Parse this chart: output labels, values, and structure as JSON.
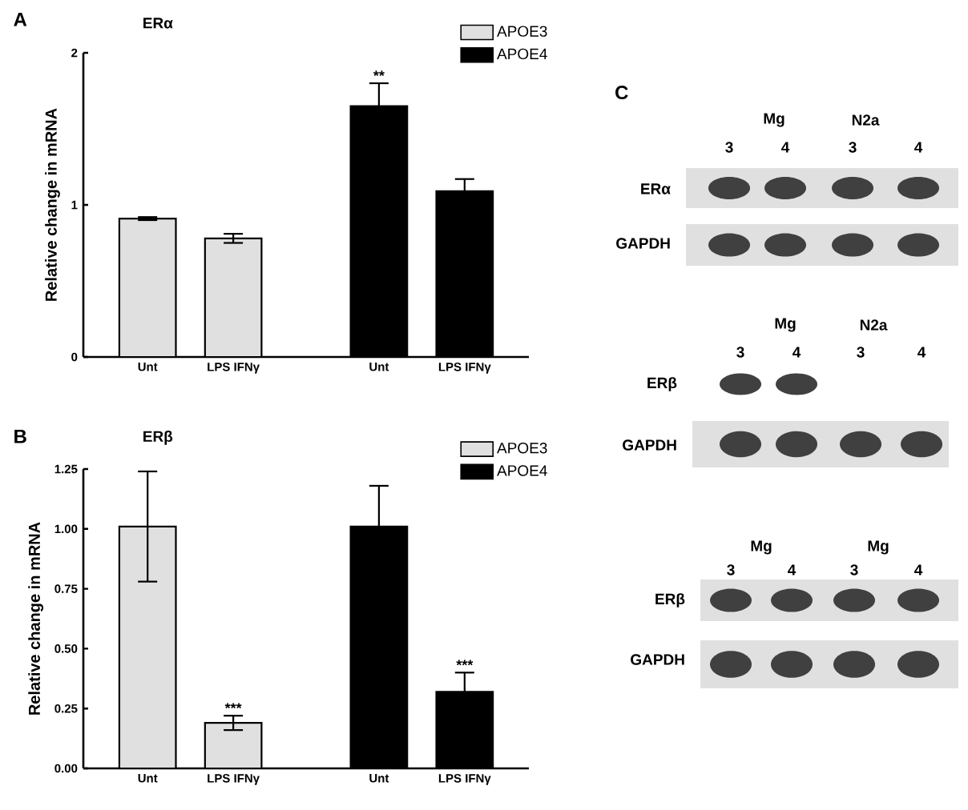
{
  "chart_data": [
    {
      "type": "bar",
      "title": "ERα",
      "ylabel": "Relative change in mRNA",
      "categories": [
        "Unt",
        "LPS IFNγ",
        "Unt",
        "LPS IFNγ"
      ],
      "series": [
        {
          "name": "APOE3",
          "color": "#e0e0e0",
          "values": [
            0.91,
            0.78,
            null,
            null
          ],
          "errors": [
            0.01,
            0.03,
            null,
            null
          ]
        },
        {
          "name": "APOE4",
          "color": "#000000",
          "values": [
            null,
            null,
            1.65,
            1.09
          ],
          "errors": [
            null,
            null,
            0.15,
            0.08
          ],
          "value_labels": [
            null,
            null,
            "**",
            null
          ]
        }
      ],
      "ylim": [
        0,
        2
      ],
      "yticks": [
        0,
        1,
        2
      ],
      "legend": "top right",
      "annotations": [
        "A"
      ]
    },
    {
      "type": "bar",
      "title": "ERβ",
      "ylabel": "Relative change in mRNA",
      "categories": [
        "Unt",
        "LPS IFNγ",
        "Unt",
        "LPS IFNγ"
      ],
      "series": [
        {
          "name": "APOE3",
          "color": "#e0e0e0",
          "values": [
            1.01,
            0.19,
            null,
            null
          ],
          "errors": [
            0.23,
            0.03,
            null,
            null
          ],
          "value_labels": [
            null,
            "***",
            null,
            null
          ]
        },
        {
          "name": "APOE4",
          "color": "#000000",
          "values": [
            null,
            null,
            1.01,
            0.32
          ],
          "errors": [
            null,
            null,
            0.17,
            0.08
          ],
          "value_labels": [
            null,
            null,
            null,
            "***"
          ]
        }
      ],
      "ylim": [
        0,
        1.25
      ],
      "yticks": [
        {
          "value": 0,
          "label": "0.00"
        },
        {
          "value": 0.25,
          "label": "0.25"
        },
        {
          "value": 0.5,
          "label": "0.50"
        },
        {
          "value": 0.75,
          "label": "0.75"
        },
        {
          "value": 1,
          "label": "1.00"
        },
        {
          "value": 1.25,
          "label": "1.25"
        }
      ],
      "legend": "top right",
      "annotations": [
        "B"
      ]
    },
    {
      "type": "other",
      "title": "C",
      "annotations": [
        "Mg",
        "N2a",
        "3",
        "4",
        "3",
        "4",
        "ERα",
        "GAPDH",
        "Mg",
        "N2a",
        "3",
        "4",
        "3",
        "4",
        "ERβ",
        "GAPDH",
        "Mg",
        "Mg",
        "3",
        "4",
        "3",
        "4",
        "ERβ",
        "GAPDH"
      ]
    }
  ]
}
